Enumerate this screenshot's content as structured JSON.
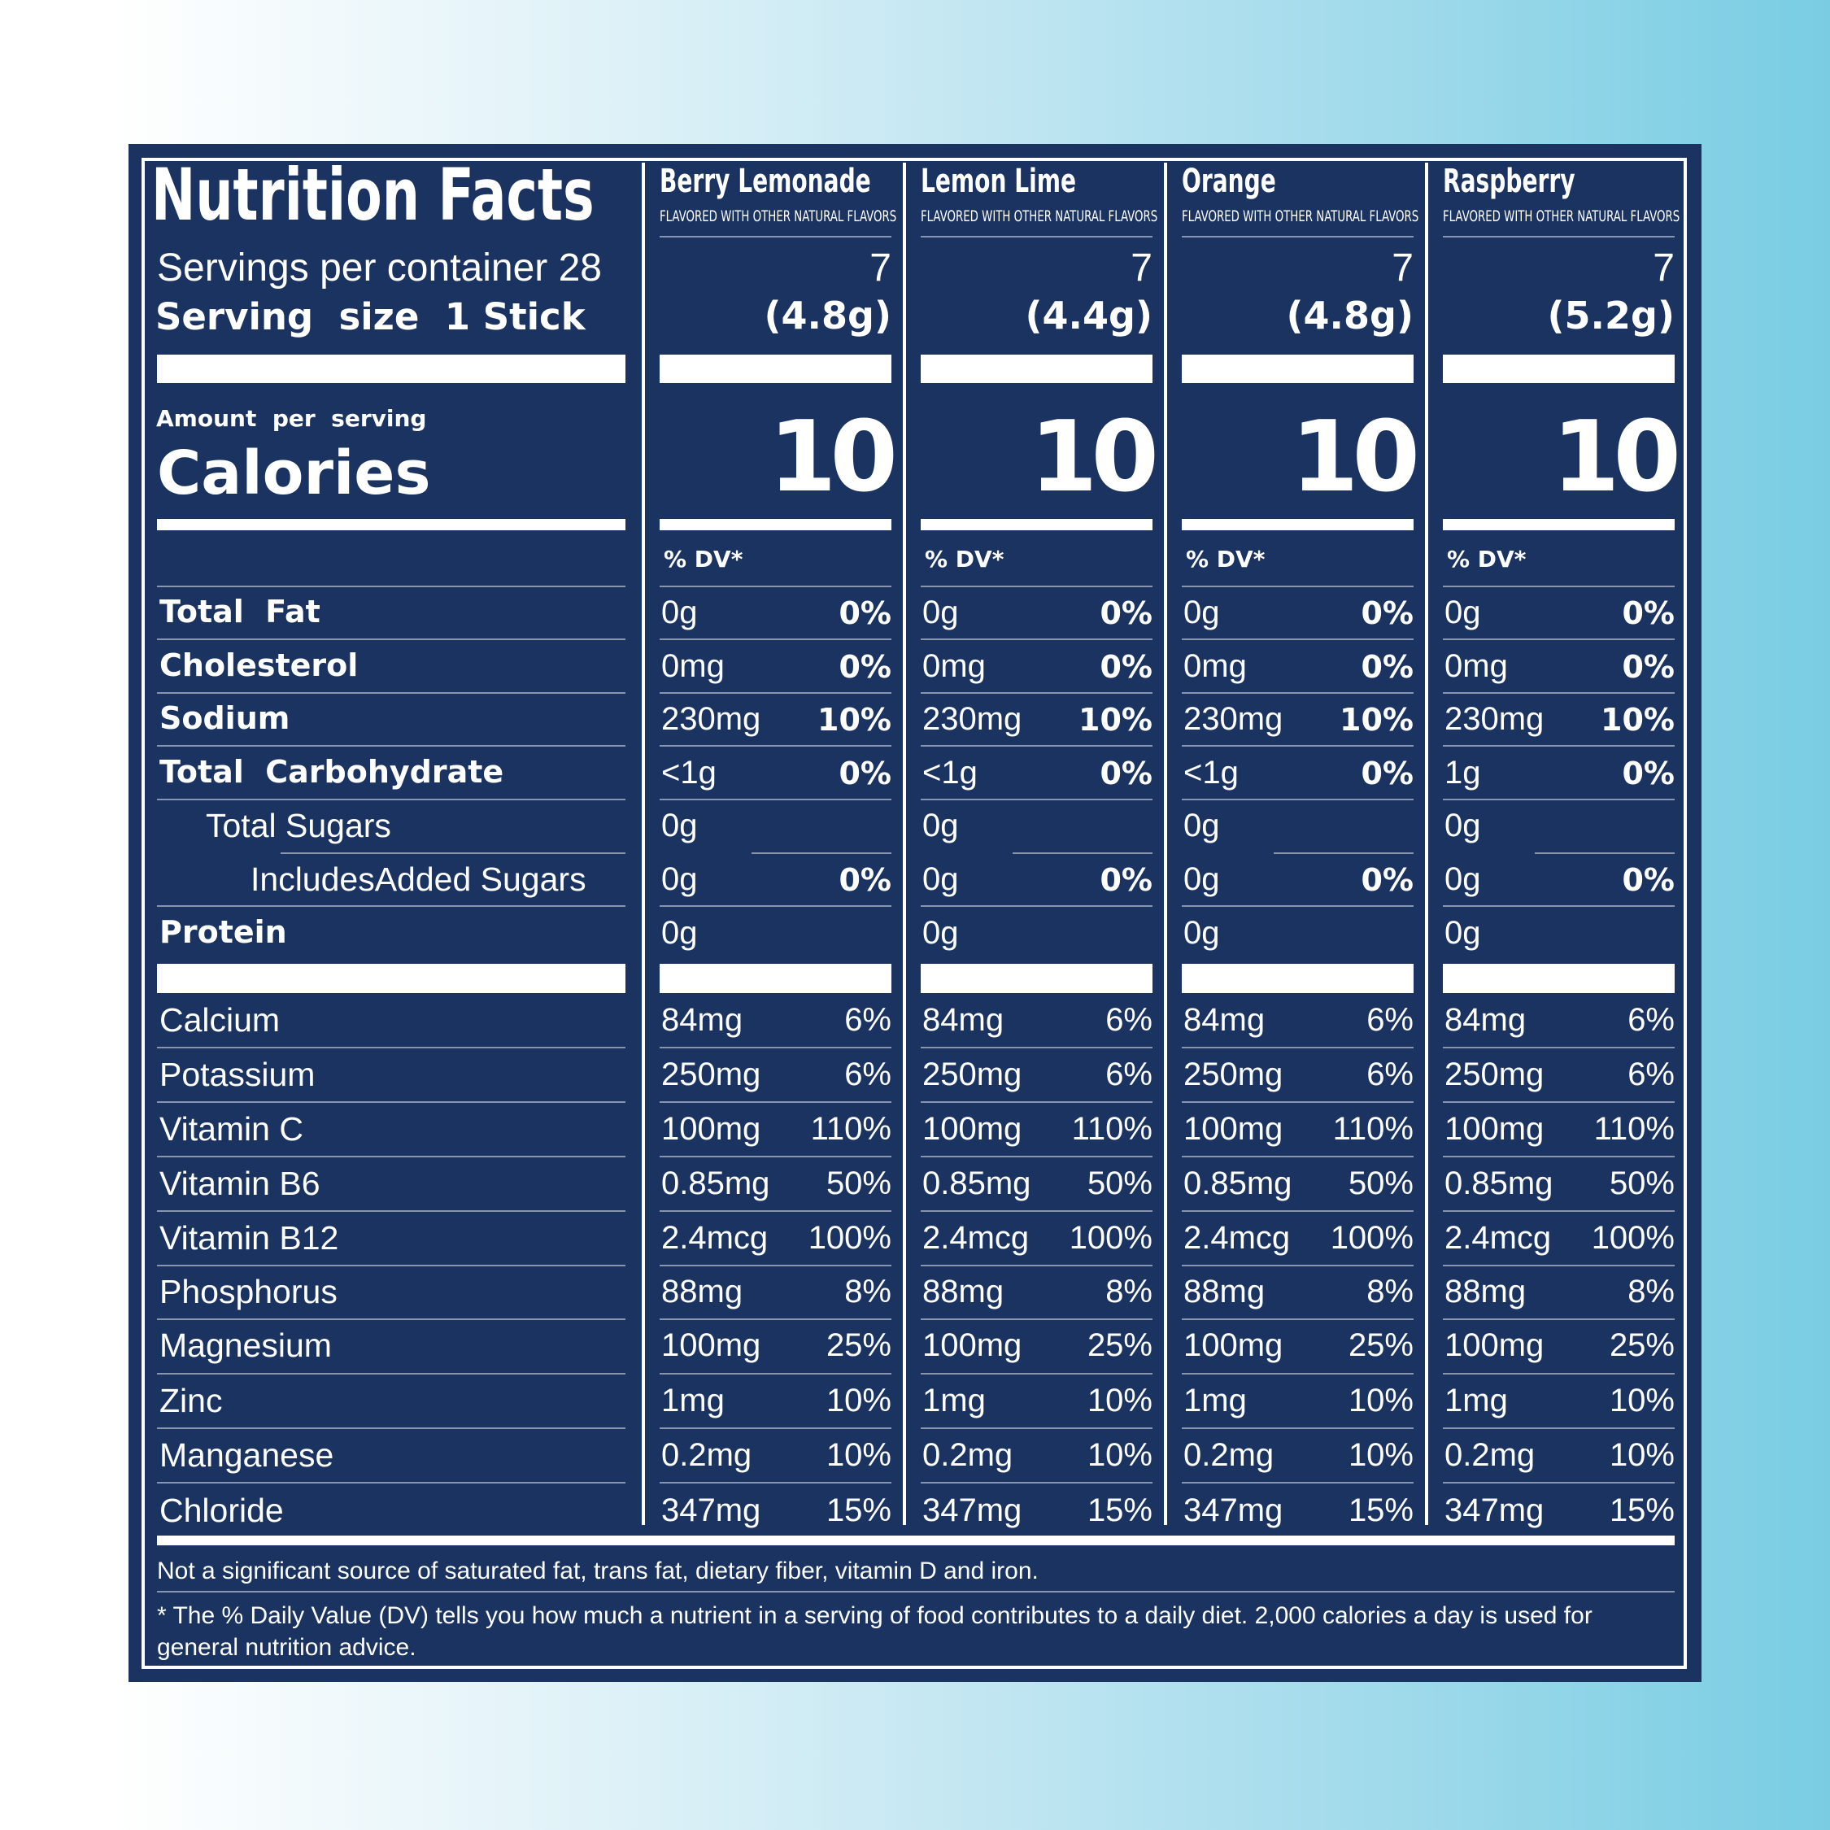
{
  "title": "Nutrition Facts",
  "servings_per_container_label": "Servings per container 28",
  "serving_size_label": "Serving  size  1 Stick",
  "amount_per_serving_label": "Amount  per  serving",
  "calories_label": "Calories",
  "dv_header": "% DV*",
  "flavors": [
    {
      "name": "Berry Lemonade",
      "subtitle": "FLAVORED WITH OTHER NATURAL FLAVORS",
      "servings": "7",
      "serving_weight": "(4.8g)",
      "calories": "10",
      "total_fat": "0g",
      "total_fat_dv": "0%",
      "cholesterol": "0mg",
      "cholesterol_dv": "0%",
      "sodium": "230mg",
      "sodium_dv": "10%",
      "carbohydrate": "<1g",
      "carbohydrate_dv": "0%",
      "total_sugars": "0g",
      "added_sugars": "0g",
      "added_sugars_dv": "0%",
      "protein": "0g"
    },
    {
      "name": "Lemon Lime",
      "subtitle": "FLAVORED WITH OTHER NATURAL FLAVORS",
      "servings": "7",
      "serving_weight": "(4.4g)",
      "calories": "10",
      "total_fat": "0g",
      "total_fat_dv": "0%",
      "cholesterol": "0mg",
      "cholesterol_dv": "0%",
      "sodium": "230mg",
      "sodium_dv": "10%",
      "carbohydrate": "<1g",
      "carbohydrate_dv": "0%",
      "total_sugars": "0g",
      "added_sugars": "0g",
      "added_sugars_dv": "0%",
      "protein": "0g"
    },
    {
      "name": "Orange",
      "subtitle": "FLAVORED WITH OTHER NATURAL FLAVORS",
      "servings": "7",
      "serving_weight": "(4.8g)",
      "calories": "10",
      "total_fat": "0g",
      "total_fat_dv": "0%",
      "cholesterol": "0mg",
      "cholesterol_dv": "0%",
      "sodium": "230mg",
      "sodium_dv": "10%",
      "carbohydrate": "<1g",
      "carbohydrate_dv": "0%",
      "total_sugars": "0g",
      "added_sugars": "0g",
      "added_sugars_dv": "0%",
      "protein": "0g"
    },
    {
      "name": "Raspberry",
      "subtitle": "FLAVORED WITH OTHER NATURAL FLAVORS",
      "servings": "7",
      "serving_weight": "(5.2g)",
      "calories": "10",
      "total_fat": "0g",
      "total_fat_dv": "0%",
      "cholesterol": "0mg",
      "cholesterol_dv": "0%",
      "sodium": "230mg",
      "sodium_dv": "10%",
      "carbohydrate": "1g",
      "carbohydrate_dv": "0%",
      "total_sugars": "0g",
      "added_sugars": "0g",
      "added_sugars_dv": "0%",
      "protein": "0g"
    }
  ],
  "nutrient_labels": {
    "total_fat": "Total  Fat",
    "cholesterol": "Cholesterol",
    "sodium": "Sodium",
    "carbohydrate": "Total  Carbohydrate",
    "total_sugars": "Total Sugars",
    "added_sugars": "IncludesAdded Sugars",
    "protein": "Protein"
  },
  "micronutrients": [
    {
      "name": "Calcium",
      "amount": "84mg",
      "dv": "6%"
    },
    {
      "name": "Potassium",
      "amount": "250mg",
      "dv": "6%"
    },
    {
      "name": "Vitamin C",
      "amount": "100mg",
      "dv": "110%"
    },
    {
      "name": "Vitamin B6",
      "amount": "0.85mg",
      "dv": "50%"
    },
    {
      "name": "Vitamin B12",
      "amount": "2.4mcg",
      "dv": "100%"
    },
    {
      "name": "Phosphorus",
      "amount": "88mg",
      "dv": "8%"
    },
    {
      "name": "Magnesium",
      "amount": "100mg",
      "dv": "25%"
    },
    {
      "name": "Zinc",
      "amount": "1mg",
      "dv": "10%"
    },
    {
      "name": "Manganese",
      "amount": "0.2mg",
      "dv": "10%"
    },
    {
      "name": "Chloride",
      "amount": "347mg",
      "dv": "15%"
    }
  ],
  "footnote_not_significant": "Not a significant source of saturated fat, trans fat, dietary fiber, vitamin D and iron.",
  "footnote_dv_line1": "* The % Daily Value (DV) tells you how much a nutrient in a serving of food contributes to a daily diet. 2,000 calories a day is used for",
  "footnote_dv_line2": "general nutrition advice.",
  "colors": {
    "panel": "#1a3361",
    "text": "#ffffff",
    "background_left": "#ffffff",
    "background_right": "#79cde3"
  }
}
